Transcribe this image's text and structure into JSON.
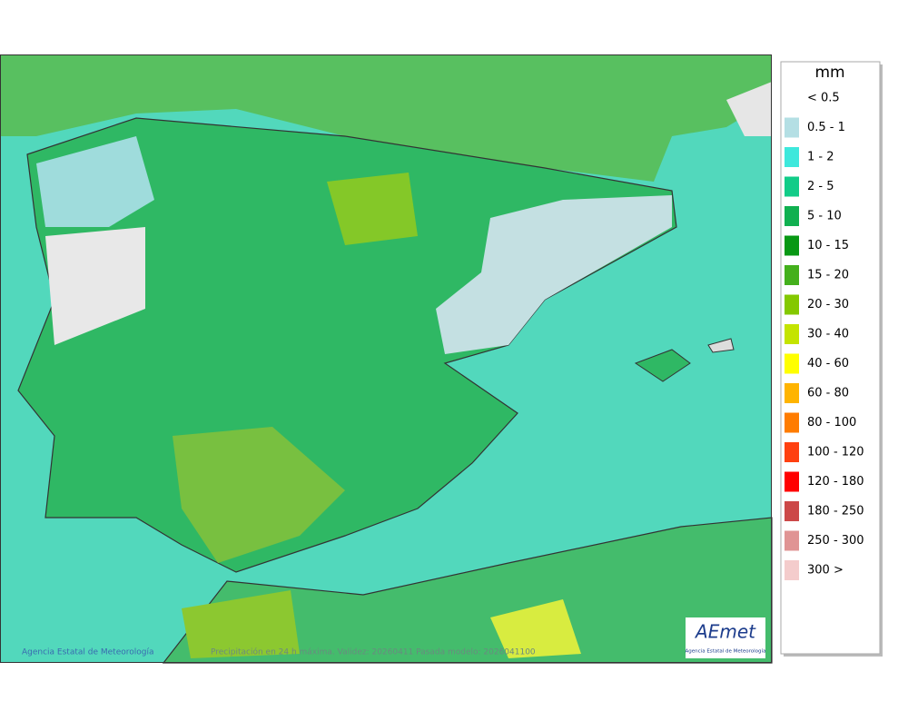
{
  "legend": {
    "unit": "mm",
    "items": [
      {
        "label": "< 0.5",
        "color": "#ffffff"
      },
      {
        "label": "0.5 - 1",
        "color": "#b4dfe4"
      },
      {
        "label": "1 - 2",
        "color": "#3ee8dc"
      },
      {
        "label": "2 - 5",
        "color": "#12cc88"
      },
      {
        "label": "5 - 10",
        "color": "#10b050"
      },
      {
        "label": "10 - 15",
        "color": "#089814"
      },
      {
        "label": "15 - 20",
        "color": "#44b01c"
      },
      {
        "label": "20 - 30",
        "color": "#84c800"
      },
      {
        "label": "30 - 40",
        "color": "#c4e400"
      },
      {
        "label": "40 - 60",
        "color": "#ffff00"
      },
      {
        "label": "60 - 80",
        "color": "#ffb400"
      },
      {
        "label": "80 - 100",
        "color": "#ff7c00"
      },
      {
        "label": "100 - 120",
        "color": "#ff4010"
      },
      {
        "label": "120 - 180",
        "color": "#ff0000"
      },
      {
        "label": "180 - 250",
        "color": "#cc4848"
      },
      {
        "label": "250 - 300",
        "color": "#e09494"
      },
      {
        "label": "300 >",
        "color": "#f4cccc"
      }
    ]
  },
  "footer": {
    "credit": "Agencia Estatal de Meteorología",
    "caption": "Precipitación en 24 h máxima. Validez: 20260411 Pasada modelo: 2026041100"
  },
  "logo": {
    "name": "AEmet",
    "subtitle": "Agencia Estatal de Meteorología"
  }
}
